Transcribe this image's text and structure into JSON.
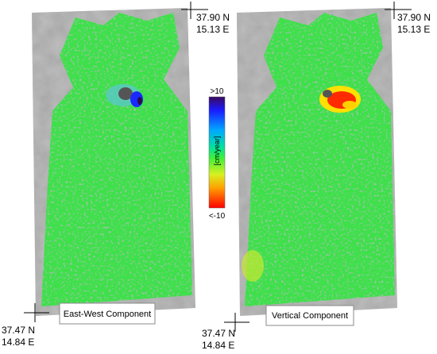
{
  "maps": [
    {
      "label": "East-West Component",
      "top_right": {
        "lat": "37.90 N",
        "lon": "15.13 E"
      },
      "bottom_left": {
        "lat": "37.47 N",
        "lon": "14.84 E"
      }
    },
    {
      "label": "Vertical Component",
      "top_right": {
        "lat": "37.90 N",
        "lon": "15.13 E"
      },
      "bottom_left": {
        "lat": "37.47 N",
        "lon": "14.84 E"
      }
    }
  ],
  "colorbar": {
    "title": "[cm/year]",
    "max_label": ">10",
    "min_label": "<-10"
  }
}
